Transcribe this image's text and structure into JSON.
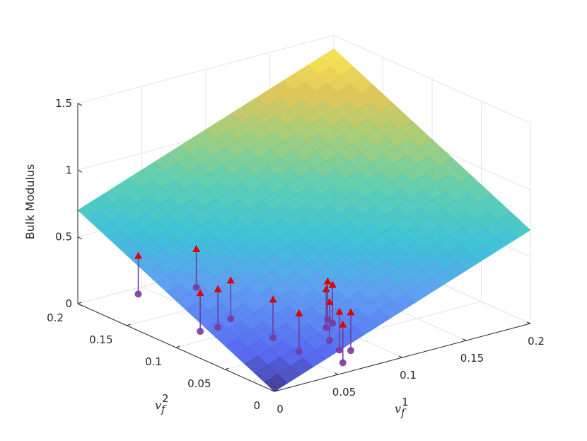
{
  "chart_data": {
    "type": "surface3d",
    "title": "",
    "xlabel": {
      "base": "v",
      "sub": "f",
      "sup": "1"
    },
    "ylabel": {
      "base": "v",
      "sub": "f",
      "sup": "2"
    },
    "zlabel": "Bulk Modulus",
    "xlim": [
      0,
      0.2
    ],
    "ylim": [
      0,
      0.2
    ],
    "zlim": [
      0,
      1.5
    ],
    "xticks": [
      0,
      0.05,
      0.1,
      0.15,
      0.2
    ],
    "yticks": [
      0,
      0.05,
      0.1,
      0.15,
      0.2
    ],
    "zticks": [
      0,
      0.5,
      1,
      1.5
    ],
    "xtick_labels": [
      "0",
      "0.05",
      "0.1",
      "0.15",
      "0.2"
    ],
    "ytick_labels": [
      "0",
      "0.05",
      "0.1",
      "0.15",
      "0.2"
    ],
    "ztick_labels": [
      "0",
      "0.5",
      "1",
      "1.5"
    ],
    "grid": true,
    "colormap": "parula",
    "surface": {
      "description_formula": "z = 3.5*(x+y)",
      "corner_values": {
        "x0y0": 0.0,
        "x0.2y0": 0.7,
        "x0y0.2": 0.7,
        "x0.2y0.2": 1.4
      }
    },
    "points": [
      {
        "x": 0.005,
        "y": 0.145,
        "z_surface": 0.52,
        "z_point": 0.0
      },
      {
        "x": 0.035,
        "y": 0.125,
        "z_surface": 0.56,
        "z_point": 0.0
      },
      {
        "x": 0.015,
        "y": 0.095,
        "z_surface": 0.38,
        "z_point": 0.0
      },
      {
        "x": 0.025,
        "y": 0.09,
        "z_surface": 0.4,
        "z_point": 0.0
      },
      {
        "x": 0.035,
        "y": 0.09,
        "z_surface": 0.44,
        "z_point": 0.0
      },
      {
        "x": 0.045,
        "y": 0.06,
        "z_surface": 0.37,
        "z_point": 0.0
      },
      {
        "x": 0.075,
        "y": 0.045,
        "z_surface": 0.42,
        "z_point": 0.0
      },
      {
        "x": 0.08,
        "y": 0.05,
        "z_surface": 0.45,
        "z_point": 0.0
      },
      {
        "x": 0.08,
        "y": 0.045,
        "z_surface": 0.44,
        "z_point": 0.0
      },
      {
        "x": 0.075,
        "y": 0.02,
        "z_surface": 0.33,
        "z_point": 0.0
      },
      {
        "x": 0.07,
        "y": 0.025,
        "z_surface": 0.33,
        "z_point": 0.0
      },
      {
        "x": 0.065,
        "y": 0.015,
        "z_surface": 0.28,
        "z_point": 0.0
      },
      {
        "x": 0.05,
        "y": 0.04,
        "z_surface": 0.32,
        "z_point": 0.0
      },
      {
        "x": 0.07,
        "y": 0.035,
        "z_surface": 0.37,
        "z_point": 0.0
      }
    ],
    "marker_colors": {
      "surface_marker": "#e00000",
      "data_marker": "#7a3aa0",
      "stem": "#6a3a9a"
    }
  }
}
